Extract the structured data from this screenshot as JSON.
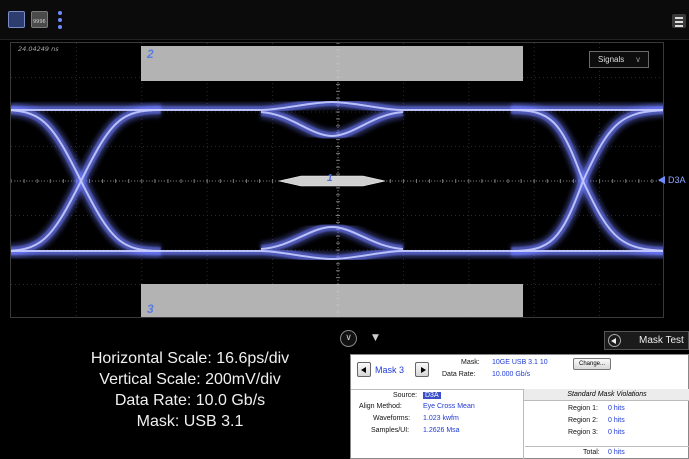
{
  "toolbar": {
    "btn_b_label": "9996",
    "menu_icon": "hamburger-icon"
  },
  "screen": {
    "timestamp": "24.04249 ns",
    "signals_button": "Signals",
    "signals_chevron": "∨",
    "mask_region_labels": [
      "2",
      "1",
      "3"
    ],
    "channel_marker": "D3A",
    "eye_color": "#6e7cff"
  },
  "scale_info": {
    "horizontal": "Horizontal Scale: 16.6ps/div",
    "vertical": "Vertical Scale: 200mV/div",
    "data_rate": "Data Rate: 10.0 Gb/s",
    "mask": "Mask: USB 3.1"
  },
  "mask_test": {
    "header": "Mask Test",
    "mask_index": "Mask 3",
    "mask_label": "Mask:",
    "mask_value": "10GE USB 3.1 10",
    "change_button": "Change...",
    "data_rate_label": "Data Rate:",
    "data_rate_value": "10.000 Gb/s",
    "source_label": "Source:",
    "source_value": "D3A",
    "align_label": "Align Method:",
    "align_value": "Eye Cross Mean",
    "waveforms_label": "Waveforms:",
    "waveforms_value": "1.023 kwfm",
    "samples_label": "Samples/UI:",
    "samples_value": "1.2626 Msa",
    "violations_header": "Standard Mask Violations",
    "regions": [
      {
        "label": "Region 1:",
        "value": "0 hits"
      },
      {
        "label": "Region 2:",
        "value": "0 hits"
      },
      {
        "label": "Region 3:",
        "value": "0 hits"
      }
    ],
    "total_label": "Total:",
    "total_value": "0 hits",
    "accent": "#1f3ad4"
  }
}
